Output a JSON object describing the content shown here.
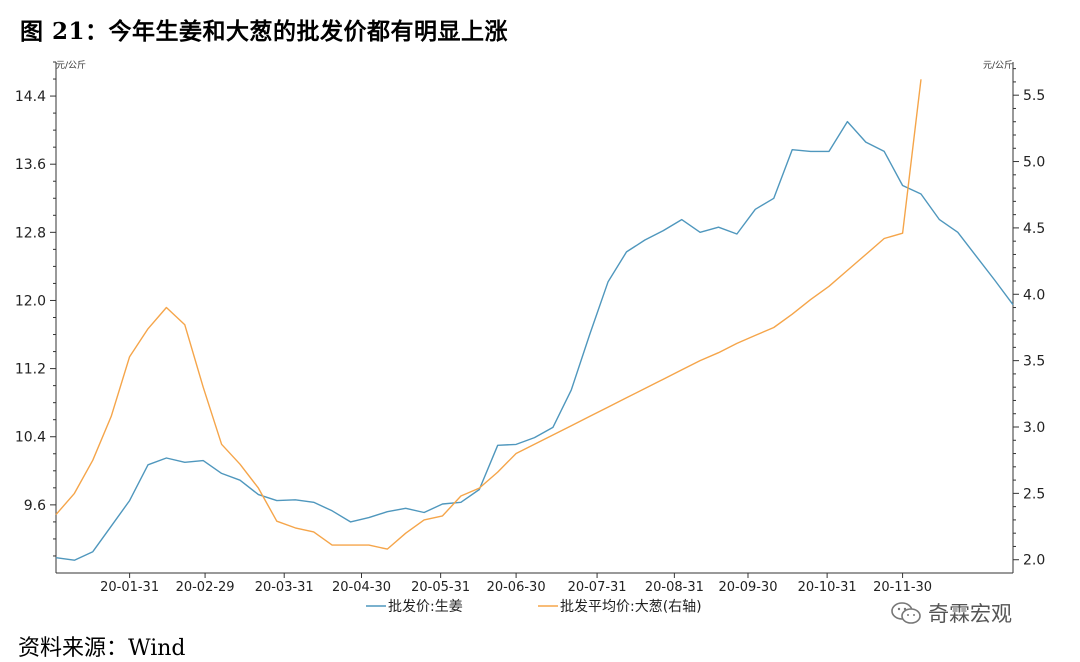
{
  "title": "图 21：今年生姜和大葱的批发价都有明显上涨",
  "source": "资料来源：Wind",
  "watermark": "奇霖宏观",
  "chart_data": {
    "type": "line",
    "left_unit": "元/公斤",
    "right_unit": "元/公斤",
    "left_axis": {
      "ylim": [
        8.8,
        14.8
      ],
      "ticks": [
        "9.6",
        "10.4",
        "11.2",
        "12.0",
        "12.8",
        "13.6",
        "14.4"
      ]
    },
    "right_axis": {
      "ylim": [
        1.9,
        5.75
      ],
      "ticks": [
        "2.0",
        "2.5",
        "3.0",
        "3.5",
        "4.0",
        "4.5",
        "5.0",
        "5.5"
      ]
    },
    "x_ticks": [
      "20-01-31",
      "20-02-29",
      "20-03-31",
      "20-04-30",
      "20-05-31",
      "20-06-30",
      "20-07-31",
      "20-08-31",
      "20-09-30",
      "20-10-31",
      "20-11-30"
    ],
    "x_range": [
      0,
      52
    ],
    "x_tick_positions": [
      4,
      8.1,
      12.4,
      16.6,
      20.9,
      25,
      29.4,
      33.6,
      37.6,
      41.9,
      46
    ],
    "grid": false,
    "legend": "bottom",
    "series": [
      {
        "name": "批发价:生姜",
        "axis": "left",
        "color": "#4f97bd",
        "x": [
          0,
          1,
          2,
          3,
          4,
          5,
          6,
          7,
          8,
          9,
          10,
          11,
          12,
          13,
          14,
          15,
          16,
          17,
          18,
          19,
          20,
          21,
          22,
          23,
          24,
          25,
          26,
          27,
          28,
          29,
          30,
          31,
          32,
          33,
          34,
          35,
          36,
          37,
          38,
          39,
          40,
          41,
          42,
          43,
          44,
          45,
          46,
          47,
          48,
          49,
          50,
          51,
          52
        ],
        "values": [
          8.98,
          8.95,
          9.05,
          9.35,
          9.65,
          10.07,
          10.15,
          10.1,
          10.12,
          9.97,
          9.89,
          9.72,
          9.65,
          9.66,
          9.63,
          9.53,
          9.4,
          9.45,
          9.52,
          9.56,
          9.51,
          9.61,
          9.63,
          9.78,
          10.3,
          10.31,
          10.39,
          10.51,
          10.95,
          11.6,
          12.22,
          12.57,
          12.71,
          12.82,
          12.95,
          12.8,
          12.86,
          12.78,
          13.07,
          13.2,
          13.77,
          13.75,
          13.75,
          14.1,
          13.86,
          13.75,
          13.35,
          13.25,
          12.95,
          12.8,
          12.52,
          12.24,
          11.95
        ]
      },
      {
        "name": "批发平均价:大葱(右轴)",
        "axis": "right",
        "color": "#f5a54a",
        "x": [
          0,
          1,
          2,
          3,
          4,
          5,
          6,
          7,
          8,
          9,
          10,
          11,
          12,
          13,
          14,
          15,
          16,
          17,
          18,
          19,
          20,
          21,
          22,
          23,
          24,
          25,
          26,
          27,
          28,
          29,
          30,
          31,
          32,
          33,
          34,
          35,
          36,
          37,
          38,
          39,
          40,
          41,
          42,
          43,
          44,
          45,
          46,
          47
        ],
        "values": [
          2.34,
          2.5,
          2.75,
          3.08,
          3.53,
          3.74,
          3.9,
          3.77,
          3.3,
          2.87,
          2.72,
          2.54,
          2.29,
          2.24,
          2.21,
          2.11,
          2.11,
          2.11,
          2.08,
          2.2,
          2.3,
          2.33,
          2.48,
          2.54,
          2.66,
          2.8,
          2.87,
          2.94,
          3.01,
          3.08,
          3.15,
          3.22,
          3.29,
          3.36,
          3.43,
          3.5,
          3.56,
          3.63,
          3.69,
          3.75,
          3.85,
          3.96,
          4.06,
          4.18,
          4.3,
          4.42,
          4.46,
          5.62
        ]
      }
    ]
  }
}
